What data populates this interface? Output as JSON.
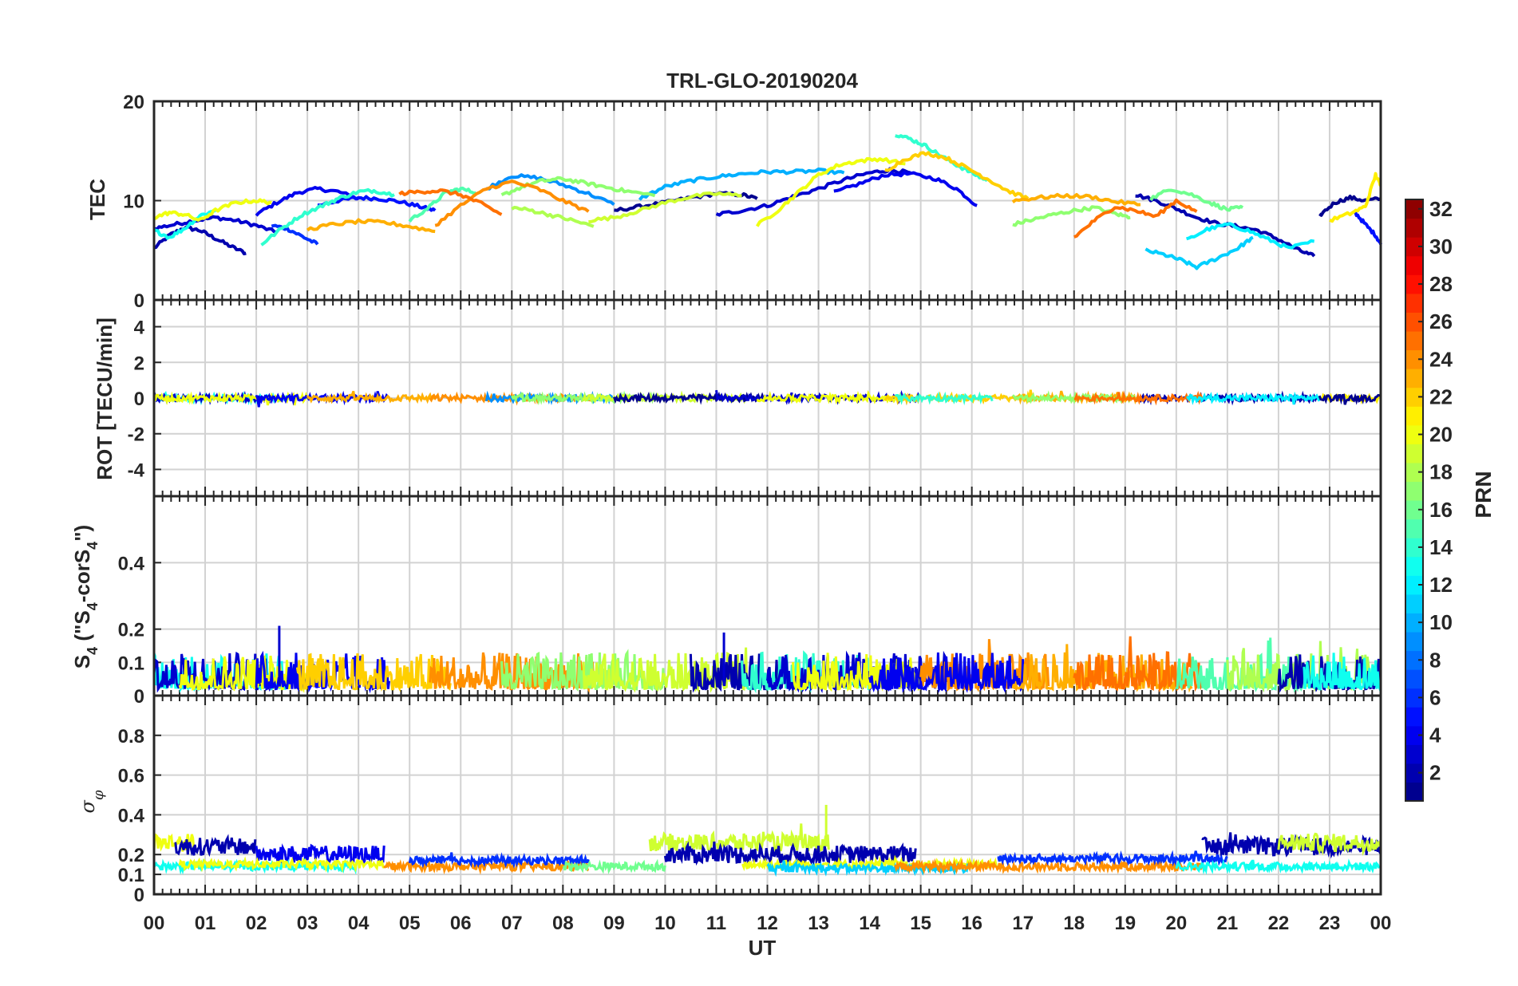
{
  "chart_data": {
    "type": "line",
    "title": "TRL-GLO-20190204",
    "xlabel": "UT",
    "x_ticks": [
      "00",
      "01",
      "02",
      "03",
      "04",
      "05",
      "06",
      "07",
      "08",
      "09",
      "10",
      "11",
      "12",
      "13",
      "14",
      "15",
      "16",
      "17",
      "18",
      "19",
      "20",
      "21",
      "22",
      "23",
      "00"
    ],
    "xlim": [
      0,
      24
    ],
    "grid": true,
    "panels": [
      {
        "name": "tec",
        "ylabel": "TEC",
        "ylim": [
          0,
          20
        ],
        "yticks": [
          0,
          10,
          20
        ],
        "series": [
          {
            "prn": 2,
            "x": [
              0.0,
              0.3,
              0.6,
              0.9,
              1.2,
              1.5,
              1.8
            ],
            "y": [
              5.2,
              6.5,
              7.3,
              7.0,
              6.2,
              5.4,
              4.7
            ]
          },
          {
            "prn": 3,
            "x": [
              0.0,
              0.4,
              0.8,
              1.2,
              1.6,
              2.0,
              2.4
            ],
            "y": [
              7.2,
              7.6,
              8.0,
              8.3,
              8.0,
              7.5,
              6.8
            ]
          },
          {
            "prn": 4,
            "x": [
              2.0,
              2.4,
              2.8,
              3.2,
              3.6,
              4.0
            ],
            "y": [
              8.6,
              9.8,
              10.8,
              11.2,
              10.9,
              10.2
            ]
          },
          {
            "prn": 5,
            "x": [
              3.2,
              3.6,
              4.0,
              4.4,
              4.8,
              5.2,
              5.5
            ],
            "y": [
              9.5,
              10.0,
              10.3,
              10.2,
              9.9,
              9.4,
              9.0
            ]
          },
          {
            "prn": 6,
            "x": [
              2.3,
              2.6,
              2.9,
              3.2
            ],
            "y": [
              7.5,
              7.2,
              6.4,
              5.6
            ]
          },
          {
            "prn": 1,
            "x": [
              9.0,
              9.5,
              10.0,
              10.5,
              11.0,
              11.5,
              11.8
            ],
            "y": [
              9.0,
              9.4,
              9.8,
              10.3,
              10.7,
              10.6,
              10.2
            ]
          },
          {
            "prn": 3,
            "x": [
              11.0,
              11.5,
              12.0,
              12.5,
              13.0,
              13.5,
              14.0,
              14.4,
              14.8
            ],
            "y": [
              8.6,
              9.0,
              9.5,
              10.4,
              11.2,
              12.1,
              12.8,
              13.1,
              12.8
            ]
          },
          {
            "prn": 4,
            "x": [
              13.3,
              13.8,
              14.3,
              14.8,
              15.3,
              15.7,
              16.1
            ],
            "y": [
              10.8,
              11.7,
              12.6,
              12.7,
              12.2,
              11.2,
              9.5
            ]
          },
          {
            "prn": 2,
            "x": [
              19.2,
              19.6,
              20.0,
              20.4,
              20.8,
              21.2,
              21.6,
              22.0,
              22.4,
              22.7
            ],
            "y": [
              10.6,
              10.0,
              9.2,
              8.3,
              7.7,
              7.4,
              7.0,
              6.1,
              5.0,
              4.4
            ]
          },
          {
            "prn": 1,
            "x": [
              22.8,
              23.1,
              23.4,
              23.7,
              24.0
            ],
            "y": [
              8.5,
              9.8,
              10.3,
              10.0,
              10.2
            ]
          },
          {
            "prn": 5,
            "x": [
              23.5,
              23.7,
              23.9,
              24.0
            ],
            "y": [
              8.8,
              7.6,
              6.5,
              5.6
            ]
          },
          {
            "prn": 9,
            "x": [
              6.5,
              7.0,
              7.5,
              8.0,
              8.5,
              9.0
            ],
            "y": [
              11.2,
              12.5,
              12.3,
              11.6,
              10.7,
              9.6
            ]
          },
          {
            "prn": 10,
            "x": [
              9.5,
              10.0,
              10.5,
              11.0,
              11.5,
              12.0,
              12.5,
              13.0,
              13.5
            ],
            "y": [
              10.2,
              11.4,
              12.0,
              12.4,
              12.7,
              12.9,
              12.9,
              13.0,
              12.8
            ]
          },
          {
            "prn": 11,
            "x": [
              19.4,
              19.8,
              20.1,
              20.4,
              20.8,
              21.2,
              21.5
            ],
            "y": [
              5.0,
              4.5,
              4.0,
              3.3,
              4.2,
              5.2,
              6.3
            ]
          },
          {
            "prn": 12,
            "x": [
              20.2,
              20.6,
              21.0,
              21.4,
              21.8,
              22.2,
              22.7
            ],
            "y": [
              6.0,
              7.1,
              7.6,
              7.0,
              6.1,
              5.2,
              5.9
            ]
          },
          {
            "prn": 13,
            "x": [
              0.0,
              0.3,
              0.6,
              0.9,
              1.2
            ],
            "y": [
              7.0,
              6.3,
              7.2,
              8.5,
              9.0
            ]
          },
          {
            "prn": 14,
            "x": [
              2.1,
              2.5,
              2.9,
              3.3,
              3.6,
              4.0,
              4.3,
              4.7
            ],
            "y": [
              5.6,
              7.2,
              8.6,
              9.5,
              10.2,
              10.9,
              11.0,
              10.6
            ]
          },
          {
            "prn": 14,
            "x": [
              14.5,
              14.8,
              15.1,
              15.4,
              15.7,
              16.0,
              16.3
            ],
            "y": [
              16.7,
              16.2,
              15.5,
              14.5,
              13.6,
              12.8,
              12.0
            ]
          },
          {
            "prn": 15,
            "x": [
              5.0,
              5.4,
              5.7,
              6.0,
              6.3
            ],
            "y": [
              8.0,
              9.4,
              10.8,
              11.2,
              10.8
            ]
          },
          {
            "prn": 16,
            "x": [
              19.5,
              19.9,
              20.3,
              20.7,
              21.0,
              21.3
            ],
            "y": [
              10.2,
              11.2,
              10.6,
              9.7,
              9.1,
              9.3
            ]
          },
          {
            "prn": 17,
            "x": [
              6.8,
              7.2,
              7.6,
              8.0,
              8.4,
              8.8,
              9.2,
              9.8
            ],
            "y": [
              10.5,
              11.4,
              12.0,
              12.2,
              11.8,
              11.4,
              11.0,
              10.5
            ]
          },
          {
            "prn": 18,
            "x": [
              7.0,
              7.4,
              7.8,
              8.2,
              8.6
            ],
            "y": [
              9.3,
              9.0,
              8.5,
              8.0,
              7.4
            ]
          },
          {
            "prn": 17,
            "x": [
              16.8,
              17.2,
              17.6,
              18.0,
              18.4,
              18.8,
              19.1
            ],
            "y": [
              7.6,
              8.1,
              8.6,
              9.0,
              9.3,
              8.7,
              8.3
            ]
          },
          {
            "prn": 19,
            "x": [
              8.5,
              9.0,
              9.5,
              10.0,
              10.5,
              11.0,
              11.5
            ],
            "y": [
              8.0,
              8.3,
              9.0,
              9.8,
              10.4,
              10.7,
              10.5
            ]
          },
          {
            "prn": 20,
            "x": [
              0.0,
              0.3,
              0.6,
              0.9,
              1.2,
              1.6,
              2.0,
              2.3
            ],
            "y": [
              8.3,
              8.8,
              8.6,
              8.0,
              9.0,
              9.8,
              10.0,
              9.8
            ]
          },
          {
            "prn": 20,
            "x": [
              11.8,
              12.2,
              12.6,
              13.0,
              13.4,
              13.8,
              14.2,
              14.7
            ],
            "y": [
              7.5,
              9.0,
              10.8,
              12.6,
              13.6,
              14.0,
              14.2,
              13.7
            ]
          },
          {
            "prn": 21,
            "x": [
              23.0,
              23.4,
              23.7,
              23.9,
              24.0
            ],
            "y": [
              8.0,
              8.7,
              9.4,
              12.6,
              11.5
            ]
          },
          {
            "prn": 22,
            "x": [
              14.3,
              14.7,
              15.1,
              15.5,
              15.9,
              16.3,
              16.7,
              17.1
            ],
            "y": [
              13.0,
              14.2,
              14.8,
              14.3,
              13.3,
              12.2,
              11.0,
              10.2
            ]
          },
          {
            "prn": 23,
            "x": [
              3.0,
              3.5,
              4.0,
              4.5,
              5.0,
              5.5
            ],
            "y": [
              7.1,
              7.6,
              7.9,
              7.8,
              7.4,
              6.9
            ]
          },
          {
            "prn": 23,
            "x": [
              16.8,
              17.3,
              17.8,
              18.3,
              18.8,
              19.3
            ],
            "y": [
              10.0,
              10.3,
              10.5,
              10.4,
              9.9,
              9.6
            ]
          },
          {
            "prn": 24,
            "x": [
              5.5,
              6.0,
              6.5,
              7.0,
              7.5,
              8.0,
              8.5
            ],
            "y": [
              7.5,
              9.5,
              11.2,
              11.9,
              11.2,
              10.0,
              8.9
            ]
          },
          {
            "prn": 25,
            "x": [
              4.8,
              5.2,
              5.6,
              6.0,
              6.4,
              6.8
            ],
            "y": [
              10.7,
              10.9,
              11.0,
              10.6,
              9.7,
              8.6
            ]
          },
          {
            "prn": 25,
            "x": [
              18.0,
              18.4,
              18.8,
              19.2,
              19.6,
              20.0,
              20.4
            ],
            "y": [
              6.3,
              8.0,
              9.4,
              9.0,
              8.4,
              10.0,
              8.9
            ]
          }
        ]
      },
      {
        "name": "rot",
        "ylabel": "ROT [TECU/min]",
        "ylim": [
          -5.5,
          5.5
        ],
        "yticks": [
          -4,
          -2,
          0,
          2,
          4
        ],
        "series_note": "ROT noise around 0 (about ±0.3) for every satellite, same colors as TEC"
      },
      {
        "name": "s4",
        "ylabel": "S4 (\"S4-corS4\")",
        "ylim": [
          0,
          0.6
        ],
        "yticks": [
          0,
          0.1,
          0.2,
          0.4
        ],
        "series_note": "S4 noise mostly 0.02–0.12, peaks near 0.21 at 02:30 and 0.19 at 11:10"
      },
      {
        "name": "sigma_phi",
        "ylabel": "σφ",
        "ylim": [
          0,
          1.0
        ],
        "yticks": [
          0,
          0.1,
          0.2,
          0.4,
          0.6,
          0.8
        ],
        "series_note": "σφ baseline 0.12–0.18, elevated bands 0.2–0.35 during 00–03, 09:45–13:15 (peak 0.45), 21–24"
      }
    ],
    "colorbar": {
      "label": "PRN",
      "min": 1,
      "max": 32,
      "ticks": [
        2,
        4,
        6,
        8,
        10,
        12,
        14,
        16,
        18,
        20,
        22,
        24,
        26,
        28,
        30,
        32
      ],
      "colormap": "jet"
    }
  },
  "noise_tracks": {
    "rot": [
      {
        "prn": 13,
        "x0": 0.0,
        "x1": 2.6
      },
      {
        "prn": 3,
        "x0": 0.0,
        "x1": 2.3
      },
      {
        "prn": 20,
        "x0": 0.0,
        "x1": 3.0
      },
      {
        "prn": 4,
        "x0": 2.0,
        "x1": 4.6
      },
      {
        "prn": 23,
        "x0": 3.0,
        "x1": 5.6
      },
      {
        "prn": 24,
        "x0": 5.4,
        "x1": 8.6
      },
      {
        "prn": 9,
        "x0": 6.5,
        "x1": 9.0
      },
      {
        "prn": 17,
        "x0": 7.0,
        "x1": 10.0
      },
      {
        "prn": 19,
        "x0": 8.4,
        "x1": 11.6
      },
      {
        "prn": 1,
        "x0": 9.0,
        "x1": 12.0
      },
      {
        "prn": 3,
        "x0": 11.0,
        "x1": 15.0
      },
      {
        "prn": 20,
        "x0": 11.8,
        "x1": 14.7
      },
      {
        "prn": 22,
        "x0": 14.3,
        "x1": 17.2
      },
      {
        "prn": 14,
        "x0": 14.5,
        "x1": 16.4
      },
      {
        "prn": 23,
        "x0": 16.8,
        "x1": 19.4
      },
      {
        "prn": 17,
        "x0": 16.8,
        "x1": 19.2
      },
      {
        "prn": 2,
        "x0": 19.2,
        "x1": 22.8
      },
      {
        "prn": 25,
        "x0": 18.0,
        "x1": 20.5
      },
      {
        "prn": 12,
        "x0": 20.2,
        "x1": 22.8
      },
      {
        "prn": 21,
        "x0": 22.8,
        "x1": 24.0
      },
      {
        "prn": 1,
        "x0": 22.8,
        "x1": 24.0
      }
    ],
    "s4": [
      {
        "prn": 13,
        "x0": 0.0,
        "x1": 2.6
      },
      {
        "prn": 3,
        "x0": 0.0,
        "x1": 2.3
      },
      {
        "prn": 20,
        "x0": 0.5,
        "x1": 3.0
      },
      {
        "prn": 4,
        "x0": 2.0,
        "x1": 4.6
      },
      {
        "prn": 22,
        "x0": 2.8,
        "x1": 5.8
      },
      {
        "prn": 24,
        "x0": 5.4,
        "x1": 8.6
      },
      {
        "prn": 17,
        "x0": 6.8,
        "x1": 10.0
      },
      {
        "prn": 19,
        "x0": 8.4,
        "x1": 11.6
      },
      {
        "prn": 2,
        "x0": 10.5,
        "x1": 12.3
      },
      {
        "prn": 14,
        "x0": 11.5,
        "x1": 14.0
      },
      {
        "prn": 3,
        "x0": 12.0,
        "x1": 15.5
      },
      {
        "prn": 20,
        "x0": 12.5,
        "x1": 15.0
      },
      {
        "prn": 24,
        "x0": 15.0,
        "x1": 17.5
      },
      {
        "prn": 4,
        "x0": 14.0,
        "x1": 17.0
      },
      {
        "prn": 23,
        "x0": 16.8,
        "x1": 20.3
      },
      {
        "prn": 25,
        "x0": 18.0,
        "x1": 20.5
      },
      {
        "prn": 15,
        "x0": 20.0,
        "x1": 22.5
      },
      {
        "prn": 18,
        "x0": 21.0,
        "x1": 24.0
      },
      {
        "prn": 2,
        "x0": 22.0,
        "x1": 24.0
      },
      {
        "prn": 13,
        "x0": 22.5,
        "x1": 24.0
      }
    ],
    "sigma_phi": [
      {
        "prn": 20,
        "x0": 0.0,
        "x1": 0.8,
        "level": 0.26
      },
      {
        "prn": 2,
        "x0": 0.4,
        "x1": 2.0,
        "level": 0.24
      },
      {
        "prn": 4,
        "x0": 2.0,
        "x1": 4.5,
        "level": 0.2
      },
      {
        "prn": 13,
        "x0": 0.0,
        "x1": 4.0,
        "level": 0.14
      },
      {
        "prn": 20,
        "x0": 0.5,
        "x1": 4.5,
        "level": 0.15
      },
      {
        "prn": 24,
        "x0": 4.5,
        "x1": 8.5,
        "level": 0.14
      },
      {
        "prn": 6,
        "x0": 5.0,
        "x1": 8.5,
        "level": 0.17
      },
      {
        "prn": 16,
        "x0": 8.0,
        "x1": 10.0,
        "level": 0.14
      },
      {
        "prn": 19,
        "x0": 9.7,
        "x1": 13.2,
        "level": 0.26
      },
      {
        "prn": 2,
        "x0": 10.0,
        "x1": 14.9,
        "level": 0.2
      },
      {
        "prn": 20,
        "x0": 11.5,
        "x1": 16.5,
        "level": 0.15
      },
      {
        "prn": 11,
        "x0": 12.0,
        "x1": 16.0,
        "level": 0.13
      },
      {
        "prn": 24,
        "x0": 14.5,
        "x1": 20.5,
        "level": 0.14
      },
      {
        "prn": 6,
        "x0": 16.5,
        "x1": 21.0,
        "level": 0.18
      },
      {
        "prn": 2,
        "x0": 20.5,
        "x1": 24.0,
        "level": 0.24
      },
      {
        "prn": 19,
        "x0": 22.0,
        "x1": 24.0,
        "level": 0.26
      },
      {
        "prn": 13,
        "x0": 20.0,
        "x1": 24.0,
        "level": 0.14
      }
    ]
  }
}
